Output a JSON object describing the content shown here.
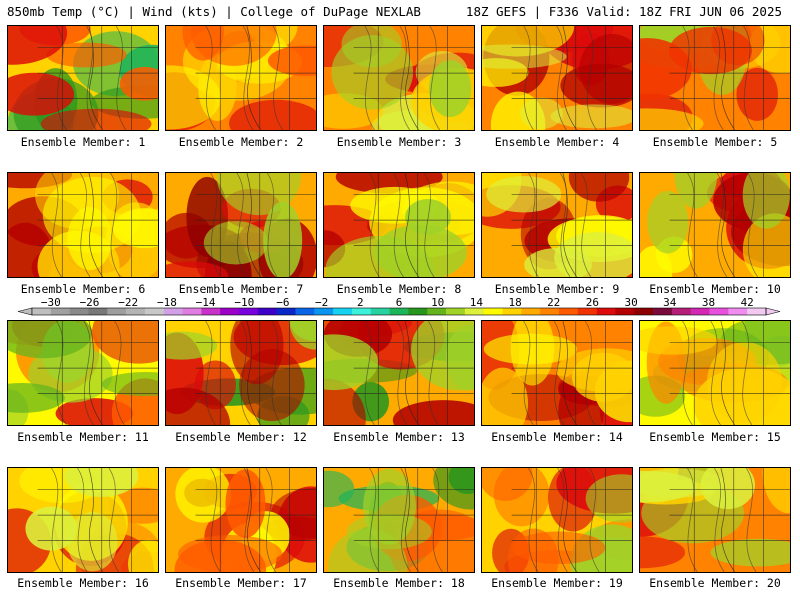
{
  "header": {
    "left": "850mb Temp (°C) | Wind (kts) | College of DuPage NEXLAB",
    "right": "18Z GEFS | F336 Valid: 18Z FRI JUN 06 2025"
  },
  "colorbar": {
    "labels": [
      "-30",
      "-26",
      "-22",
      "-18",
      "-14",
      "-10",
      "-6",
      "-2",
      "2",
      "6",
      "10",
      "14",
      "18",
      "22",
      "26",
      "30",
      "34",
      "38",
      "42"
    ],
    "colors": [
      "#bebebe",
      "#a0a0a0",
      "#8a8a8a",
      "#787878",
      "#9e9e9e",
      "#b4b4b4",
      "#c8c8c8",
      "#d2a0e6",
      "#e07de0",
      "#c832c8",
      "#9b00c8",
      "#7800dc",
      "#3c00c8",
      "#0a28c8",
      "#0a64e6",
      "#0a96f0",
      "#14d2f0",
      "#3cf0dc",
      "#28d2a0",
      "#1eb45a",
      "#28961e",
      "#64b41e",
      "#a0d228",
      "#dcf03c",
      "#fffa00",
      "#ffd200",
      "#ffaa00",
      "#ff8200",
      "#ff5a00",
      "#f03200",
      "#dc0a0a",
      "#b40000",
      "#8c0000",
      "#780a3c",
      "#b41e78",
      "#d228b4",
      "#e650dc",
      "#f08cf0",
      "#f0c8f0"
    ]
  },
  "members": [
    {
      "label": "Ensemble Member: 1",
      "base": "#ffd200",
      "accents": [
        "#1eb45a",
        "#28961e",
        "#ff5a00",
        "#dc0a0a"
      ]
    },
    {
      "label": "Ensemble Member: 2",
      "base": "#ff8200",
      "accents": [
        "#dc0a0a",
        "#ffd200",
        "#fffa00",
        "#ff5a00"
      ]
    },
    {
      "label": "Ensemble Member: 3",
      "base": "#ff8200",
      "accents": [
        "#dc0a0a",
        "#dcf03c",
        "#ffd200",
        "#a0d228"
      ]
    },
    {
      "label": "Ensemble Member: 4",
      "base": "#ff8200",
      "accents": [
        "#dc0a0a",
        "#b40000",
        "#fffa00",
        "#dcf03c"
      ]
    },
    {
      "label": "Ensemble Member: 5",
      "base": "#ff8200",
      "accents": [
        "#dc0a0a",
        "#ffd200",
        "#a0d228",
        "#f03200"
      ]
    },
    {
      "label": "Ensemble Member: 6",
      "base": "#ffaa00",
      "accents": [
        "#dc0a0a",
        "#b40000",
        "#ffd200",
        "#fffa00"
      ]
    },
    {
      "label": "Ensemble Member: 7",
      "base": "#ffaa00",
      "accents": [
        "#b40000",
        "#8c0000",
        "#dc0a0a",
        "#a0d228"
      ]
    },
    {
      "label": "Ensemble Member: 8",
      "base": "#ffaa00",
      "accents": [
        "#dc0a0a",
        "#b40000",
        "#fffa00",
        "#a0d228"
      ]
    },
    {
      "label": "Ensemble Member: 9",
      "base": "#ffaa00",
      "accents": [
        "#dc0a0a",
        "#b40000",
        "#fffa00",
        "#dcf03c"
      ]
    },
    {
      "label": "Ensemble Member: 10",
      "base": "#ffaa00",
      "accents": [
        "#dc0a0a",
        "#b40000",
        "#fffa00",
        "#a0d228"
      ]
    },
    {
      "label": "Ensemble Member: 11",
      "base": "#fffa00",
      "accents": [
        "#dc0a0a",
        "#ff5a00",
        "#a0d228",
        "#64b41e"
      ]
    },
    {
      "label": "Ensemble Member: 12",
      "base": "#ffd200",
      "accents": [
        "#28961e",
        "#dc0a0a",
        "#b40000",
        "#a0d228"
      ]
    },
    {
      "label": "Ensemble Member: 13",
      "base": "#ffaa00",
      "accents": [
        "#28961e",
        "#dc0a0a",
        "#b40000",
        "#a0d228"
      ]
    },
    {
      "label": "Ensemble Member: 14",
      "base": "#ff8200",
      "accents": [
        "#dc0a0a",
        "#b40000",
        "#fffa00",
        "#ffd200"
      ]
    },
    {
      "label": "Ensemble Member: 15",
      "base": "#fffa00",
      "accents": [
        "#a0d228",
        "#64b41e",
        "#ff8200",
        "#ffd200"
      ]
    },
    {
      "label": "Ensemble Member: 16",
      "base": "#ffd200",
      "accents": [
        "#ff8200",
        "#dc0a0a",
        "#fffa00",
        "#dcf03c"
      ]
    },
    {
      "label": "Ensemble Member: 17",
      "base": "#ffaa00",
      "accents": [
        "#dc0a0a",
        "#b40000",
        "#fffa00",
        "#ff5a00"
      ]
    },
    {
      "label": "Ensemble Member: 18",
      "base": "#ffaa00",
      "accents": [
        "#28961e",
        "#1eb45a",
        "#ff5a00",
        "#a0d228"
      ]
    },
    {
      "label": "Ensemble Member: 19",
      "base": "#ffd200",
      "accents": [
        "#ff8200",
        "#dc0a0a",
        "#a0d228",
        "#ff5a00"
      ]
    },
    {
      "label": "Ensemble Member: 20",
      "base": "#ff8200",
      "accents": [
        "#dc0a0a",
        "#a0d228",
        "#ffd200",
        "#dcf03c"
      ]
    }
  ]
}
